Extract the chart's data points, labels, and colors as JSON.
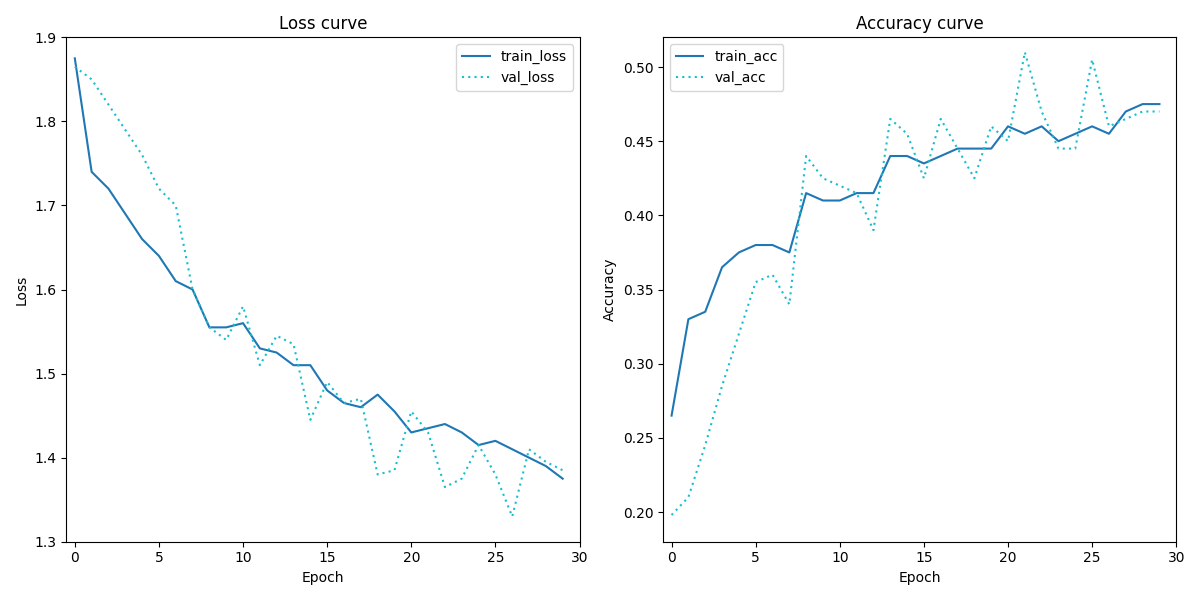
{
  "train_loss": [
    1.875,
    1.74,
    1.72,
    1.69,
    1.66,
    1.64,
    1.61,
    1.6,
    1.555,
    1.555,
    1.56,
    1.53,
    1.525,
    1.51,
    1.51,
    1.48,
    1.465,
    1.46,
    1.475,
    1.455,
    1.43,
    1.435,
    1.44,
    1.43,
    1.415,
    1.42,
    1.41,
    1.4,
    1.39,
    1.375
  ],
  "val_loss": [
    1.865,
    1.85,
    1.82,
    1.79,
    1.76,
    1.72,
    1.7,
    1.6,
    1.555,
    1.54,
    1.58,
    1.51,
    1.545,
    1.535,
    1.445,
    1.49,
    1.465,
    1.47,
    1.38,
    1.385,
    1.455,
    1.43,
    1.365,
    1.375,
    1.415,
    1.38,
    1.33,
    1.41,
    1.395,
    1.385
  ],
  "train_acc": [
    0.265,
    0.33,
    0.335,
    0.365,
    0.375,
    0.38,
    0.38,
    0.375,
    0.415,
    0.41,
    0.41,
    0.415,
    0.415,
    0.44,
    0.44,
    0.435,
    0.44,
    0.445,
    0.445,
    0.445,
    0.46,
    0.455,
    0.46,
    0.45,
    0.455,
    0.46,
    0.455,
    0.47,
    0.475,
    0.475
  ],
  "val_acc": [
    0.198,
    0.21,
    0.245,
    0.285,
    0.32,
    0.355,
    0.36,
    0.34,
    0.44,
    0.425,
    0.42,
    0.415,
    0.39,
    0.465,
    0.455,
    0.425,
    0.465,
    0.445,
    0.425,
    0.46,
    0.45,
    0.51,
    0.47,
    0.445,
    0.445,
    0.505,
    0.46,
    0.465,
    0.47,
    0.47
  ],
  "train_color": "#1f77b4",
  "val_color": "#17becf",
  "loss_title": "Loss curve",
  "acc_title": "Accuracy curve",
  "xlabel": "Epoch",
  "loss_ylabel": "Loss",
  "acc_ylabel": "Accuracy",
  "loss_ylim": [
    1.3,
    1.9
  ],
  "acc_ylim": [
    0.18,
    0.52
  ],
  "figsize": [
    12.0,
    6.0
  ],
  "dpi": 100
}
